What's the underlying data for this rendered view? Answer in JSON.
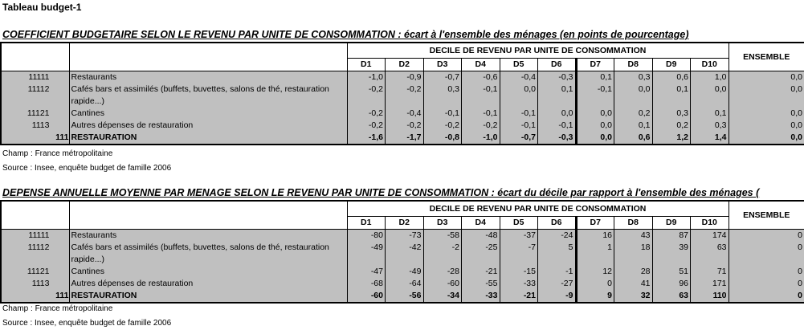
{
  "title": "Tableau budget-1",
  "columns": {
    "group_header": "DECILE DE REVENU PAR UNITE DE CONSOMMATION",
    "deciles": [
      "D1",
      "D2",
      "D3",
      "D4",
      "D5",
      "D6",
      "D7",
      "D8",
      "D9",
      "D10"
    ],
    "ensemble": "ENSEMBLE"
  },
  "tables": [
    {
      "title": "COEFFICIENT BUDGETAIRE SELON LE REVENU PAR UNITE DE CONSOMMATION",
      "subtitle": " : écart à l'ensemble des ménages (en points de pourcentage)",
      "rows": [
        {
          "code": "11111",
          "label": "Restaurants",
          "values": [
            "-1,0",
            "-0,9",
            "-0,7",
            "-0,6",
            "-0,4",
            "-0,3",
            "0,1",
            "0,3",
            "0,6",
            "1,0"
          ],
          "ensemble": "0,0"
        },
        {
          "code": "11112",
          "label": "Cafés bars et assimilés (buffets, buvettes, salons de thé, restauration rapide...)",
          "values": [
            "-0,2",
            "-0,2",
            "0,3",
            "-0,1",
            "0,0",
            "0,1",
            "-0,1",
            "0,0",
            "0,1",
            "0,0"
          ],
          "ensemble": "0,0"
        },
        {
          "code": "11121",
          "label": "Cantines",
          "values": [
            "-0,2",
            "-0,4",
            "-0,1",
            "-0,1",
            "-0,1",
            "0,0",
            "0,0",
            "0,2",
            "0,3",
            "0,1"
          ],
          "ensemble": "0,0"
        },
        {
          "code": "1113",
          "label": "Autres dépenses de restauration",
          "values": [
            "-0,2",
            "-0,2",
            "-0,2",
            "-0,2",
            "-0,1",
            "-0,1",
            "0,0",
            "0,1",
            "0,2",
            "0,3"
          ],
          "ensemble": "0,0"
        },
        {
          "code": "111",
          "label": "RESTAURATION",
          "values": [
            "-1,6",
            "-1,7",
            "-0,8",
            "-1,0",
            "-0,7",
            "-0,3",
            "0,0",
            "0,6",
            "1,2",
            "1,4"
          ],
          "ensemble": "0,0",
          "total": true
        }
      ],
      "champ": "Champ : France métropolitaine",
      "source": "Source : Insee, enquête budget de famille 2006"
    },
    {
      "title": "DEPENSE ANNUELLE MOYENNE PAR MENAGE SELON LE REVENU PAR UNITE DE CONSOMMATION",
      "subtitle": " : écart du décile par rapport à l'ensemble des ménages (",
      "rows": [
        {
          "code": "11111",
          "label": "Restaurants",
          "values": [
            "-80",
            "-73",
            "-58",
            "-48",
            "-37",
            "-24",
            "16",
            "43",
            "87",
            "174"
          ],
          "ensemble": "0"
        },
        {
          "code": "11112",
          "label": "Cafés bars et assimilés (buffets, buvettes, salons de thé, restauration rapide...)",
          "values": [
            "-49",
            "-42",
            "-2",
            "-25",
            "-7",
            "5",
            "1",
            "18",
            "39",
            "63"
          ],
          "ensemble": "0"
        },
        {
          "code": "11121",
          "label": "Cantines",
          "values": [
            "-47",
            "-49",
            "-28",
            "-21",
            "-15",
            "-1",
            "12",
            "28",
            "51",
            "71"
          ],
          "ensemble": "0"
        },
        {
          "code": "1113",
          "label": "Autres dépenses de restauration",
          "values": [
            "-68",
            "-64",
            "-60",
            "-55",
            "-33",
            "-27",
            "0",
            "41",
            "96",
            "171"
          ],
          "ensemble": "0"
        },
        {
          "code": "111",
          "label": "RESTAURATION",
          "values": [
            "-60",
            "-56",
            "-34",
            "-33",
            "-21",
            "-9",
            "9",
            "32",
            "63",
            "110"
          ],
          "ensemble": "0",
          "total": true
        }
      ],
      "champ": "Champ : France métropolitaine",
      "source": "Source : Insee, enquête budget de famille 2006"
    }
  ]
}
